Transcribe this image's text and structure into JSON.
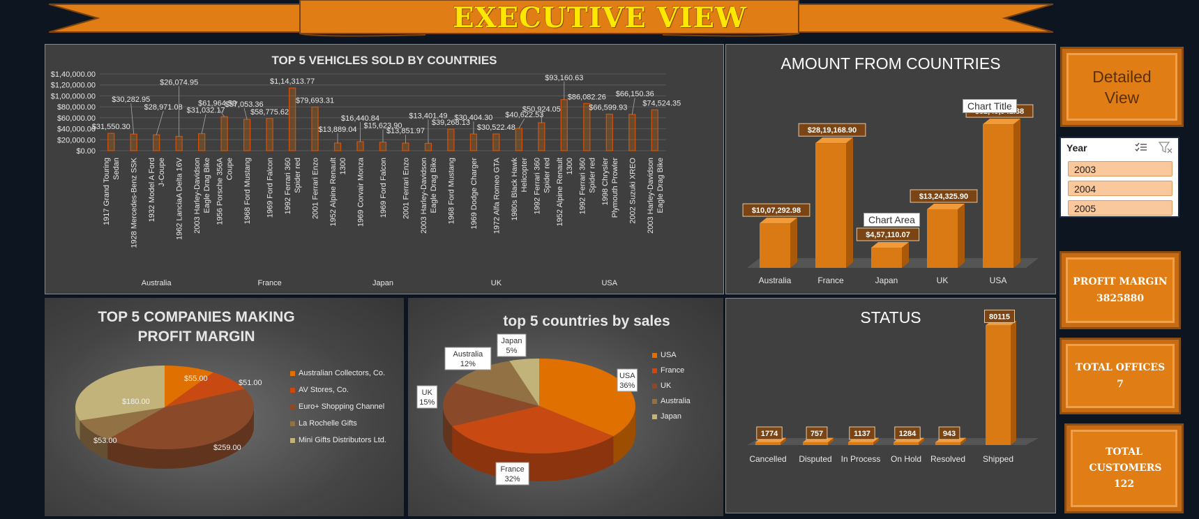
{
  "banner": {
    "title": "EXECUTIVE VIEW"
  },
  "vehicles_chart": {
    "title": "TOP 5 VEHICLES  SOLD BY COUNTRIES",
    "y_ticks": [
      "$1,40,000.00",
      "$1,20,000.00",
      "$1,00,000.00",
      "$80,000.00",
      "$60,000.00",
      "$40,000.00",
      "$20,000.00",
      "$0.00"
    ],
    "countries": [
      "Australia",
      "France",
      "Japan",
      "UK",
      "USA"
    ]
  },
  "amount_chart": {
    "title": "AMOUNT FROM COUNTRIES",
    "chart_title_tag": "Chart Title",
    "chart_area_tag": "Chart Area"
  },
  "companies_chart": {
    "title": "TOP 5 COMPANIES MAKING PROFIT MARGIN"
  },
  "countries_chart": {
    "title": "top 5 countries by sales"
  },
  "status_chart": {
    "title": "STATUS"
  },
  "detailed_view": {
    "label": "Detailed View"
  },
  "year_slicer": {
    "title": "Year",
    "items": [
      "2003",
      "2004",
      "2005"
    ]
  },
  "kpis": {
    "profit_margin": {
      "label": "PROFIT MARGIN",
      "value": "3825880"
    },
    "total_offices": {
      "label": "TOTAL OFFICES",
      "value": "7"
    },
    "total_customers": {
      "label": "TOTAL CUSTOMERS",
      "value": "122"
    }
  },
  "chart_data": [
    {
      "type": "bar",
      "title": "TOP 5 VEHICLES  SOLD BY COUNTRIES",
      "groups": [
        "Australia",
        "Australia",
        "Australia",
        "Australia",
        "Australia",
        "France",
        "France",
        "France",
        "France",
        "France",
        "Japan",
        "Japan",
        "Japan",
        "Japan",
        "Japan",
        "UK",
        "UK",
        "UK",
        "UK",
        "UK",
        "USA",
        "USA",
        "USA",
        "USA",
        "USA"
      ],
      "categories": [
        "1917 Grand Touring Sedan",
        "1928 Mercedes-Benz SSK",
        "1932 Model A Ford J-Coupe",
        "1962 LanciaA Delta 16V",
        "2003 Harley-Davidson Eagle Drag Bike",
        "1956 Porsche 356A Coupe",
        "1968 Ford Mustang",
        "1969 Ford Falcon",
        "1992 Ferrari 360 Spider red",
        "2001 Ferrari Enzo",
        "1952 Alpine Renault 1300",
        "1969 Corvair Monza",
        "1969 Ford Falcon",
        "2001 Ferrari Enzo",
        "2003 Harley-Davidson Eagle Drag Bike",
        "1968 Ford Mustang",
        "1969 Dodge Charger",
        "1972 Alfa Romeo GTA",
        "1980s Black Hawk Helicopter",
        "1992 Ferrari 360 Spider red",
        "1952 Alpine Renault 1300",
        "1992 Ferrari 360 Spider red",
        "1998 Chrysler Plymouth Prowler",
        "2002 Suzuki XREO",
        "2003 Harley-Davidson Eagle Drag Bike"
      ],
      "values": [
        31550.3,
        30282.95,
        28971.08,
        26074.95,
        31032.17,
        61964.59,
        57053.36,
        58775.62,
        114313.77,
        79693.31,
        13889.04,
        16440.84,
        15623.9,
        13851.97,
        13401.49,
        39268.13,
        30404.3,
        30522.48,
        40622.53,
        50924.05,
        93160.63,
        86082.26,
        66599.93,
        66150.36,
        74524.35
      ],
      "labels": [
        "$31,550.30",
        "$30,282.95",
        "$28,971.08",
        "$26,074.95",
        "$31,032.17",
        "$61,964.59",
        "$57,053.36",
        "$58,775.62",
        "$1,14,313.77",
        "$79,693.31",
        "$13,889.04",
        "$16,440.84",
        "$15,623.90",
        "$13,851.97",
        "$13,401.49",
        "$39,268.13",
        "$30,404.30",
        "$30,522.48",
        "$40,622.53",
        "$50,924.05",
        "$93,160.63",
        "$86,082.26",
        "$66,599.93",
        "$66,150.36",
        "$74,524.35"
      ],
      "ylim": [
        0,
        140000
      ],
      "grid": true
    },
    {
      "type": "bar",
      "title": "AMOUNT FROM COUNTRIES",
      "categories": [
        "Australia",
        "France",
        "Japan",
        "UK",
        "USA"
      ],
      "values": [
        1007292.98,
        2819168.9,
        457110.07,
        1324325.9,
        3245941.38
      ],
      "labels": [
        "$10,07,292.98",
        "$28,19,168.90",
        "$4,57,110.07",
        "$13,24,325.90",
        "$32,45,941.38"
      ]
    },
    {
      "type": "pie",
      "title": "TOP 5 COMPANIES MAKING PROFIT MARGIN",
      "categories": [
        "Australian Collectors, Co.",
        "AV Stores, Co.",
        "Euro+ Shopping Channel",
        "La Rochelle Gifts",
        "Mini Gifts Distributors Ltd."
      ],
      "values": [
        55.0,
        51.0,
        259.0,
        53.0,
        180.0
      ],
      "labels": [
        "$55.00",
        "$51.00",
        "$259.00",
        "$53.00",
        "$180.00"
      ],
      "colors": [
        "#e07000",
        "#c84a12",
        "#8a4a2a",
        "#927144",
        "#c2b37a"
      ],
      "legend": "right"
    },
    {
      "type": "pie",
      "title": "top 5 countries by sales",
      "categories": [
        "USA",
        "France",
        "UK",
        "Australia",
        "Japan"
      ],
      "values": [
        36,
        32,
        15,
        12,
        5
      ],
      "labels": [
        "USA\n36%",
        "France\n32%",
        "UK\n15%",
        "Australia\n12%",
        "Japan\n5%"
      ],
      "colors": [
        "#e07000",
        "#c84a12",
        "#8a4a2a",
        "#927144",
        "#c2b37a"
      ],
      "legend": "right"
    },
    {
      "type": "bar",
      "title": "STATUS",
      "categories": [
        "Cancelled",
        "Disputed",
        "In Process",
        "On Hold",
        "Resolved",
        "Shipped"
      ],
      "values": [
        1774,
        757,
        1137,
        1284,
        943,
        80115
      ],
      "labels": [
        "1774",
        "757",
        "1137",
        "1284",
        "943",
        "80115"
      ]
    }
  ]
}
